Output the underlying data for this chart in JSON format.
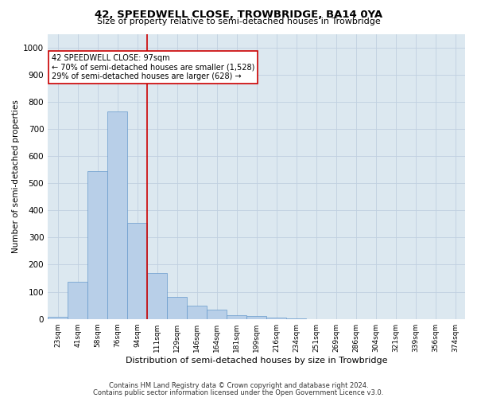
{
  "title1": "42, SPEEDWELL CLOSE, TROWBRIDGE, BA14 0YA",
  "title2": "Size of property relative to semi-detached houses in Trowbridge",
  "xlabel": "Distribution of semi-detached houses by size in Trowbridge",
  "ylabel": "Number of semi-detached properties",
  "footnote1": "Contains HM Land Registry data © Crown copyright and database right 2024.",
  "footnote2": "Contains public sector information licensed under the Open Government Licence v3.0.",
  "annotation_line1": "42 SPEEDWELL CLOSE: 97sqm",
  "annotation_line2": "← 70% of semi-detached houses are smaller (1,528)",
  "annotation_line3": "29% of semi-detached houses are larger (628) →",
  "bar_color": "#b8cfe8",
  "bar_edge_color": "#6699cc",
  "marker_line_color": "#cc0000",
  "annotation_box_edge_color": "#cc0000",
  "background_color": "#ffffff",
  "plot_bg_color": "#dce8f0",
  "grid_color": "#c0d0e0",
  "categories": [
    "23sqm",
    "41sqm",
    "58sqm",
    "76sqm",
    "94sqm",
    "111sqm",
    "129sqm",
    "146sqm",
    "164sqm",
    "181sqm",
    "199sqm",
    "216sqm",
    "234sqm",
    "251sqm",
    "269sqm",
    "286sqm",
    "304sqm",
    "321sqm",
    "339sqm",
    "356sqm",
    "374sqm"
  ],
  "values": [
    8,
    138,
    545,
    765,
    355,
    170,
    82,
    50,
    33,
    15,
    10,
    5,
    2,
    0,
    0,
    0,
    0,
    0,
    0,
    0,
    0
  ],
  "ylim": [
    0,
    1050
  ],
  "yticks": [
    0,
    100,
    200,
    300,
    400,
    500,
    600,
    700,
    800,
    900,
    1000
  ],
  "title1_fontsize": 9.5,
  "title2_fontsize": 8,
  "ylabel_fontsize": 7.5,
  "xlabel_fontsize": 8,
  "ytick_fontsize": 7.5,
  "xtick_fontsize": 6.5,
  "annotation_fontsize": 7,
  "footnote_fontsize": 6
}
